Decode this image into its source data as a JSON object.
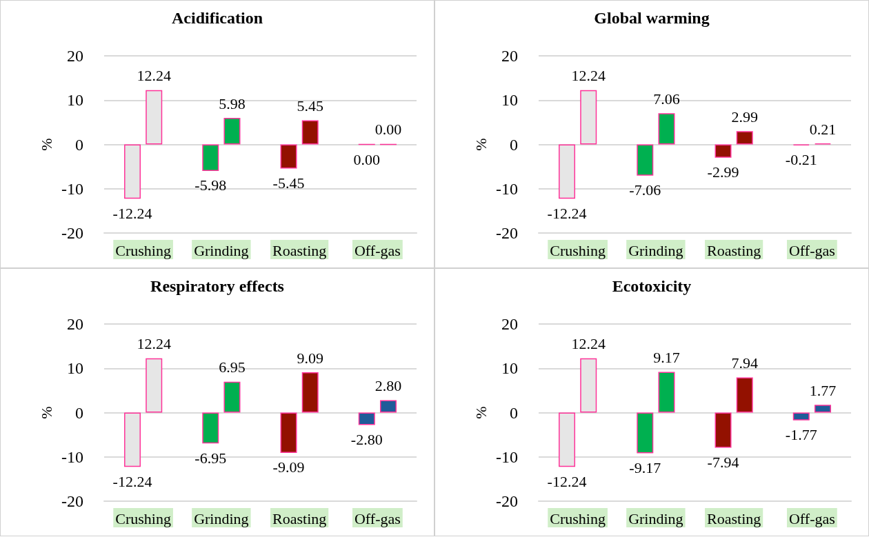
{
  "chart_data": [
    {
      "type": "bar",
      "title": "Acidification",
      "ylabel": "%",
      "categories": [
        "Crushing",
        "Grinding",
        "Roasting",
        "Off-gas"
      ],
      "ylim": [
        -20,
        20
      ],
      "yticks": [
        -20,
        -10,
        0,
        10,
        20
      ],
      "grid": "y",
      "series": [
        {
          "colors": [
            "#e6e6e6",
            "#00b050",
            "#931100",
            "#ff3399"
          ],
          "values": [
            -12.24,
            -5.98,
            -5.45,
            0.0
          ],
          "value_labels": [
            "-12.24",
            "-5.98",
            "-5.45",
            "0.00"
          ]
        },
        {
          "colors": [
            "#e6e6e6",
            "#00b050",
            "#931100",
            "#ff3399"
          ],
          "values": [
            12.24,
            5.98,
            5.45,
            0.0
          ],
          "value_labels": [
            "12.24",
            "5.98",
            "5.45",
            "0.00"
          ]
        }
      ]
    },
    {
      "type": "bar",
      "title": "Global warming",
      "ylabel": "%",
      "categories": [
        "Crushing",
        "Grinding",
        "Roasting",
        "Off-gas"
      ],
      "ylim": [
        -20,
        20
      ],
      "yticks": [
        -20,
        -10,
        0,
        10,
        20
      ],
      "grid": "y",
      "series": [
        {
          "colors": [
            "#e6e6e6",
            "#00b050",
            "#931100",
            "#ff3399"
          ],
          "values": [
            -12.24,
            -7.06,
            -2.99,
            -0.21
          ],
          "value_labels": [
            "-12.24",
            "-7.06",
            "-2.99",
            "-0.21"
          ]
        },
        {
          "colors": [
            "#e6e6e6",
            "#00b050",
            "#931100",
            "#ff3399"
          ],
          "values": [
            12.24,
            7.06,
            2.99,
            0.21
          ],
          "value_labels": [
            "12.24",
            "7.06",
            "2.99",
            "0.21"
          ]
        }
      ]
    },
    {
      "type": "bar",
      "title": "Respiratory effects",
      "ylabel": "%",
      "categories": [
        "Crushing",
        "Grinding",
        "Roasting",
        "Off-gas"
      ],
      "ylim": [
        -20,
        20
      ],
      "yticks": [
        -20,
        -10,
        0,
        10,
        20
      ],
      "grid": "y",
      "series": [
        {
          "colors": [
            "#e6e6e6",
            "#00b050",
            "#931100",
            "#1f5c99"
          ],
          "values": [
            -12.24,
            -6.95,
            -9.09,
            -2.8
          ],
          "value_labels": [
            "-12.24",
            "-6.95",
            "-9.09",
            "-2.80"
          ]
        },
        {
          "colors": [
            "#e6e6e6",
            "#00b050",
            "#931100",
            "#1f5c99"
          ],
          "values": [
            12.24,
            6.95,
            9.09,
            2.8
          ],
          "value_labels": [
            "12.24",
            "6.95",
            "9.09",
            "2.80"
          ]
        }
      ]
    },
    {
      "type": "bar",
      "title": "Ecotoxicity",
      "ylabel": "%",
      "categories": [
        "Crushing",
        "Grinding",
        "Roasting",
        "Off-gas"
      ],
      "ylim": [
        -20,
        20
      ],
      "yticks": [
        -20,
        -10,
        0,
        10,
        20
      ],
      "grid": "y",
      "series": [
        {
          "colors": [
            "#e6e6e6",
            "#00b050",
            "#931100",
            "#1f5c99"
          ],
          "values": [
            -12.24,
            -9.17,
            -7.94,
            -1.77
          ],
          "value_labels": [
            "-12.24",
            "-9.17",
            "-7.94",
            "-1.77"
          ]
        },
        {
          "colors": [
            "#e6e6e6",
            "#00b050",
            "#931100",
            "#1f5c99"
          ],
          "values": [
            12.24,
            9.17,
            7.94,
            1.77
          ],
          "value_labels": [
            "12.24",
            "9.17",
            "7.94",
            "1.77"
          ]
        }
      ]
    }
  ]
}
